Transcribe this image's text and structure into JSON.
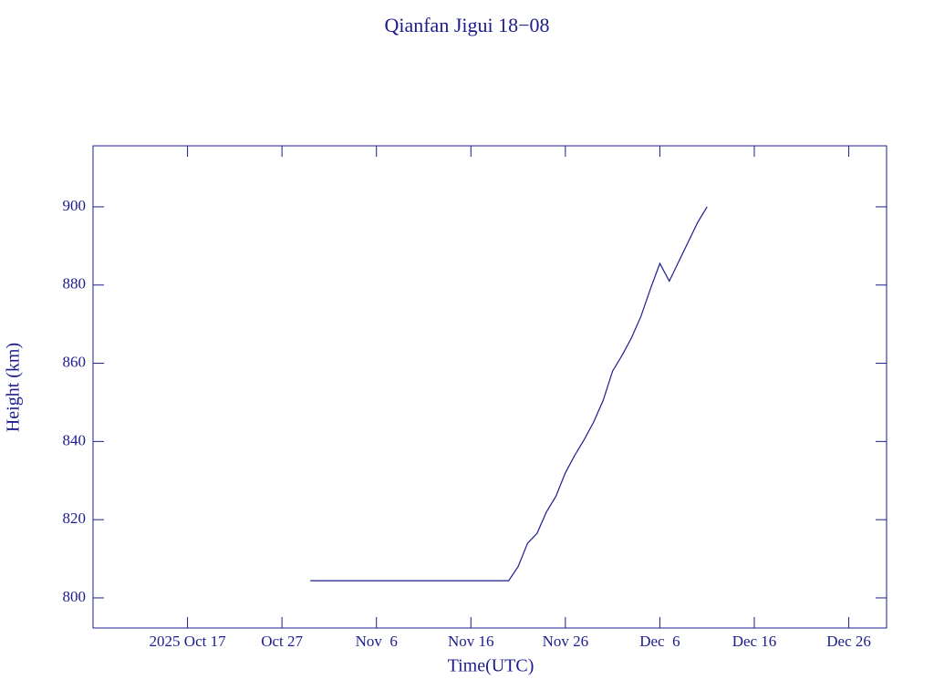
{
  "chart_data": {
    "type": "line",
    "title": "Qianfan Jigui 18−08",
    "xlabel": "Time(UTC)",
    "ylabel": "Height (km)",
    "color": "#1c1c8e",
    "x": [
      "2025-10-30",
      "2025-11-20",
      "2025-11-21",
      "2025-11-22",
      "2025-11-23",
      "2025-11-24",
      "2025-11-25",
      "2025-11-26",
      "2025-11-27",
      "2025-11-28",
      "2025-11-29",
      "2025-11-30",
      "2025-12-01",
      "2025-12-02",
      "2025-12-03",
      "2025-12-04",
      "2025-12-05",
      "2025-12-06",
      "2025-12-07",
      "2025-12-08",
      "2025-12-09",
      "2025-12-10",
      "2025-12-11"
    ],
    "values": [
      804.4,
      804.4,
      808,
      814,
      816.5,
      822,
      826,
      832,
      836.5,
      840.5,
      845,
      850.5,
      858,
      862,
      866.5,
      872,
      879,
      885.5,
      881,
      886,
      891,
      896,
      900
    ],
    "xlim": [
      "2025-10-07",
      "2025-12-30"
    ],
    "xticks": [
      {
        "value": "2025-10-17",
        "label": "2025 Oct 17"
      },
      {
        "value": "2025-10-27",
        "label": "Oct 27"
      },
      {
        "value": "2025-11-06",
        "label": "Nov  6"
      },
      {
        "value": "2025-11-16",
        "label": "Nov 16"
      },
      {
        "value": "2025-11-26",
        "label": "Nov 26"
      },
      {
        "value": "2025-12-06",
        "label": "Dec  6"
      },
      {
        "value": "2025-12-16",
        "label": "Dec 16"
      },
      {
        "value": "2025-12-26",
        "label": "Dec 26"
      }
    ],
    "ylim": [
      792.3,
      915.6
    ],
    "yticks": [
      800,
      820,
      840,
      860,
      880,
      900
    ]
  }
}
